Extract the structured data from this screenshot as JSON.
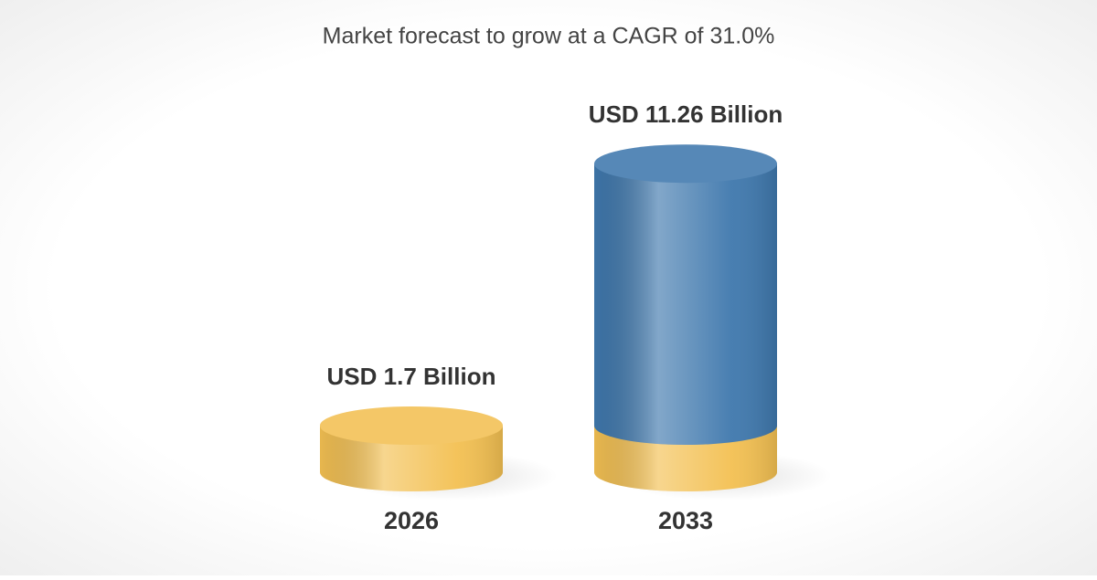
{
  "chart_data": {
    "type": "bar",
    "title": "Market forecast to grow at a CAGR of 31.0%",
    "categories": [
      "2026",
      "2033"
    ],
    "values": [
      1.7,
      11.26
    ],
    "value_labels": [
      "USD 1.7 Billion",
      "USD 11.26 Billion"
    ],
    "colors": [
      "#f3c052",
      "#3f78ad"
    ]
  }
}
